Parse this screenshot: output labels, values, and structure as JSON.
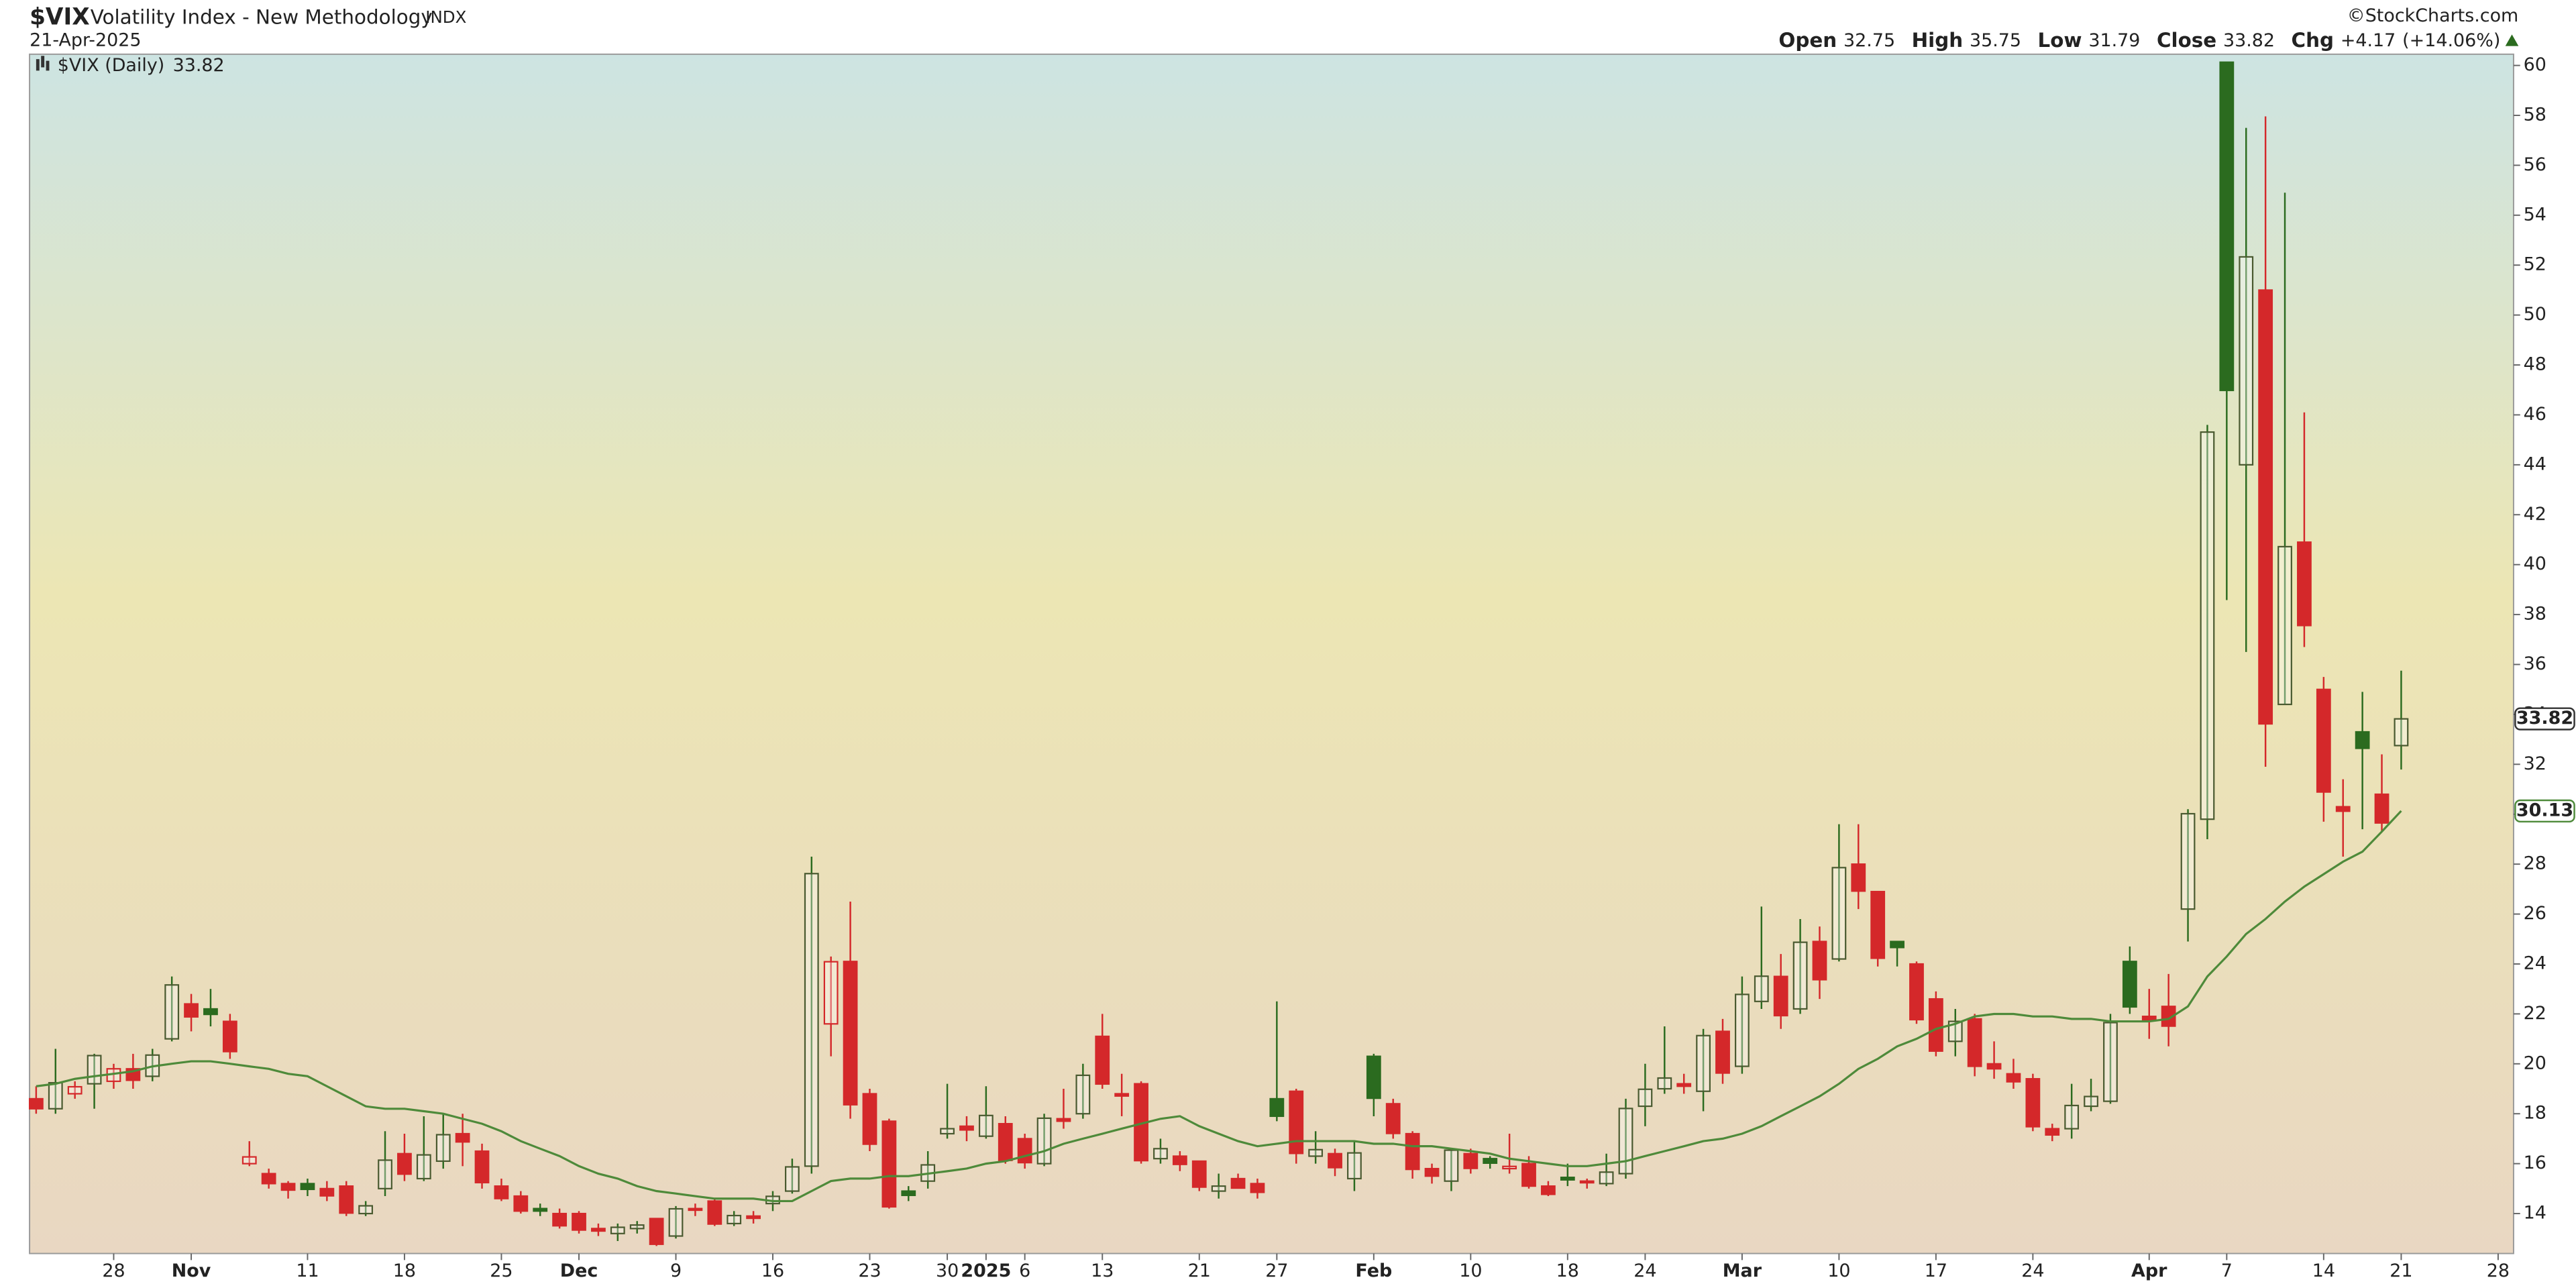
{
  "chart_data": {
    "type": "candlestick",
    "title": "$VIX",
    "subtitle": "Volatility Index - New Methodology",
    "exchange": "INDX",
    "date": "21-Apr-2025",
    "source": "©StockCharts.com",
    "legend_label": "$VIX (Daily)",
    "ohlc_labels": [
      "Open",
      "High",
      "Low",
      "Close",
      "Chg"
    ],
    "change": {
      "value": 4.17,
      "label": "+4.17"
    },
    "change_pct": {
      "value": 14.06,
      "label": "(+14.06%)"
    },
    "up_color": "#2b6b1f",
    "down_color": "#d4282a",
    "ylim": [
      12.4,
      60.45
    ],
    "yticks": [
      14,
      16,
      18,
      20,
      22,
      24,
      26,
      28,
      30,
      32,
      34,
      36,
      38,
      40,
      42,
      44,
      46,
      48,
      50,
      52,
      54,
      56,
      58,
      60
    ],
    "categories": [
      null,
      null,
      null,
      null,
      "28",
      null,
      null,
      null,
      "Nov",
      null,
      null,
      null,
      null,
      null,
      "11",
      null,
      null,
      null,
      null,
      "18",
      null,
      null,
      null,
      null,
      "25",
      null,
      null,
      null,
      "Dec",
      null,
      null,
      null,
      null,
      "9",
      null,
      null,
      null,
      null,
      "16",
      null,
      null,
      null,
      null,
      "23",
      null,
      null,
      null,
      "30",
      null,
      "2025",
      null,
      "6",
      null,
      null,
      null,
      "13",
      null,
      null,
      null,
      null,
      "21",
      null,
      null,
      null,
      "27",
      null,
      null,
      null,
      null,
      "Feb",
      null,
      null,
      null,
      null,
      "10",
      null,
      null,
      null,
      null,
      "18",
      null,
      null,
      null,
      "24",
      null,
      null,
      null,
      null,
      "Mar",
      null,
      null,
      null,
      null,
      "10",
      null,
      null,
      null,
      null,
      "17",
      null,
      null,
      null,
      null,
      "24",
      null,
      null,
      null,
      null,
      null,
      "Apr",
      null,
      null,
      null,
      "7",
      null,
      null,
      null,
      null,
      "14",
      null,
      null,
      null,
      "21",
      null,
      null,
      null,
      null,
      "28"
    ],
    "open": [
      18.6,
      18.2,
      18.8,
      19.2,
      19.3,
      19.8,
      19.5,
      21.0,
      22.4,
      22.2,
      21.7,
      16.0,
      15.6,
      15.2,
      15.2,
      15.0,
      15.1,
      14.0,
      15.0,
      16.4,
      15.4,
      16.1,
      17.2,
      16.5,
      15.1,
      14.7,
      14.2,
      14.0,
      14.0,
      13.4,
      13.2,
      13.4,
      13.8,
      13.1,
      14.2,
      14.5,
      13.6,
      13.9,
      14.4,
      14.9,
      15.9,
      21.6,
      24.1,
      18.8,
      17.7,
      14.9,
      15.3,
      17.2,
      17.5,
      17.1,
      17.6,
      17.0,
      16.0,
      17.8,
      18.0,
      21.1,
      18.8,
      19.2,
      16.2,
      16.3,
      16.1,
      14.9,
      15.4,
      15.2,
      18.6,
      18.9,
      16.3,
      16.4,
      15.4,
      20.3,
      18.4,
      17.2,
      15.8,
      15.3,
      16.4,
      16.2,
      15.8,
      16.0,
      15.1,
      15.45,
      15.3,
      15.2,
      15.6,
      18.3,
      19.0,
      19.2,
      18.9,
      21.3,
      19.9,
      22.5,
      23.5,
      22.2,
      24.9,
      24.2,
      28.0,
      26.9,
      24.9,
      24.0,
      22.6,
      20.9,
      21.8,
      20.0,
      19.6,
      19.4,
      17.4,
      17.4,
      18.3,
      18.5,
      24.1,
      21.9,
      22.3,
      26.2,
      29.8,
      60.13,
      44.0,
      51.0,
      34.4,
      40.9,
      35.0,
      30.3,
      33.3,
      30.8,
      32.75,
      null,
      null,
      null,
      null,
      null
    ],
    "high": [
      19.1,
      20.6,
      19.3,
      20.4,
      20.0,
      20.4,
      20.6,
      23.5,
      22.8,
      23.0,
      22.0,
      16.9,
      15.8,
      15.3,
      15.4,
      15.3,
      15.3,
      14.5,
      17.3,
      17.2,
      17.9,
      18.0,
      18.0,
      16.8,
      15.4,
      14.9,
      14.4,
      14.2,
      14.1,
      13.6,
      13.6,
      13.7,
      13.8,
      14.3,
      14.4,
      14.6,
      14.1,
      14.1,
      14.9,
      16.2,
      28.3,
      24.3,
      26.5,
      19.0,
      17.8,
      15.1,
      16.5,
      19.2,
      17.9,
      19.1,
      17.9,
      17.2,
      18.0,
      19.0,
      20.0,
      22.0,
      19.6,
      19.3,
      17.0,
      16.5,
      16.1,
      15.6,
      15.6,
      15.4,
      22.5,
      19.0,
      17.3,
      16.6,
      16.9,
      20.4,
      18.6,
      17.3,
      16.0,
      16.6,
      16.6,
      16.3,
      17.2,
      16.3,
      15.3,
      16.0,
      15.4,
      16.4,
      18.6,
      20.0,
      21.5,
      19.6,
      21.4,
      21.8,
      23.5,
      26.3,
      24.4,
      25.8,
      25.5,
      29.6,
      29.6,
      26.9,
      24.9,
      24.1,
      22.9,
      22.2,
      22.0,
      20.9,
      20.2,
      19.6,
      17.6,
      19.2,
      19.4,
      22.0,
      24.7,
      23.0,
      23.6,
      30.2,
      45.6,
      60.13,
      57.5,
      57.96,
      54.9,
      46.1,
      35.5,
      31.4,
      34.9,
      32.4,
      35.75,
      null,
      null,
      null,
      null,
      null
    ],
    "low": [
      18.0,
      18.0,
      18.6,
      18.2,
      19.0,
      19.0,
      19.3,
      20.9,
      21.3,
      21.5,
      20.2,
      15.9,
      15.0,
      14.6,
      14.7,
      14.5,
      13.9,
      13.9,
      14.7,
      15.3,
      15.3,
      15.8,
      15.9,
      15.0,
      14.5,
      14.0,
      13.9,
      13.4,
      13.2,
      13.1,
      12.9,
      13.2,
      12.7,
      13.0,
      13.9,
      13.5,
      13.5,
      13.6,
      14.1,
      14.8,
      15.6,
      20.3,
      17.8,
      16.5,
      14.2,
      14.5,
      15.0,
      17.0,
      16.9,
      17.0,
      16.0,
      15.8,
      15.9,
      17.4,
      17.8,
      19.0,
      17.9,
      16.0,
      16.0,
      15.7,
      14.9,
      14.6,
      15.0,
      14.6,
      17.7,
      16.0,
      16.0,
      15.5,
      14.9,
      17.9,
      17.0,
      15.4,
      15.2,
      14.9,
      15.6,
      15.8,
      15.6,
      15.0,
      14.7,
      15.1,
      15.0,
      15.1,
      15.4,
      17.5,
      18.8,
      18.8,
      18.1,
      19.2,
      19.6,
      22.2,
      21.4,
      22.0,
      22.6,
      24.1,
      26.2,
      23.9,
      23.9,
      21.6,
      20.3,
      20.3,
      19.5,
      19.4,
      19.0,
      17.3,
      16.9,
      17.0,
      18.1,
      18.4,
      22.0,
      21.0,
      20.7,
      24.9,
      29.0,
      38.58,
      36.5,
      31.9,
      34.4,
      36.7,
      29.7,
      28.3,
      29.4,
      29.3,
      31.79,
      null,
      null,
      null,
      null,
      null
    ],
    "close": [
      18.2,
      19.24,
      19.08,
      20.33,
      19.8,
      19.34,
      20.35,
      23.16,
      21.88,
      21.98,
      20.49,
      16.27,
      15.2,
      14.94,
      14.97,
      14.71,
      14.02,
      14.31,
      16.14,
      15.58,
      16.35,
      17.16,
      16.87,
      15.24,
      14.6,
      14.1,
      14.1,
      13.51,
      13.34,
      13.3,
      13.45,
      13.54,
      12.77,
      14.19,
      14.18,
      13.58,
      13.92,
      13.81,
      14.69,
      15.87,
      27.62,
      24.09,
      18.36,
      16.78,
      14.27,
      14.73,
      15.95,
      17.4,
      17.35,
      17.93,
      16.13,
      16.04,
      17.82,
      17.7,
      19.54,
      19.19,
      18.71,
      16.12,
      16.6,
      15.97,
      15.06,
      15.1,
      15.02,
      14.85,
      17.9,
      16.41,
      16.56,
      15.84,
      16.43,
      18.62,
      17.21,
      15.77,
      15.5,
      16.54,
      15.81,
      16.02,
      15.89,
      15.1,
      14.77,
      15.35,
      15.27,
      15.66,
      18.21,
      18.98,
      19.43,
      19.1,
      21.13,
      19.63,
      22.78,
      23.51,
      21.93,
      24.87,
      23.37,
      27.86,
      26.92,
      24.23,
      24.66,
      21.77,
      20.51,
      21.7,
      19.9,
      19.8,
      19.28,
      17.48,
      17.15,
      18.33,
      18.69,
      21.65,
      22.28,
      21.77,
      21.51,
      30.02,
      45.31,
      46.98,
      52.33,
      33.62,
      40.72,
      37.56,
      30.89,
      30.12,
      32.64,
      29.65,
      33.82,
      null,
      null,
      null,
      null,
      null
    ],
    "ma": {
      "color": "#4e8a3a",
      "values": [
        19.1,
        19.2,
        19.4,
        19.5,
        19.6,
        19.7,
        19.9,
        20.0,
        20.1,
        20.1,
        20.0,
        19.9,
        19.8,
        19.6,
        19.5,
        19.1,
        18.7,
        18.3,
        18.2,
        18.2,
        18.1,
        18.0,
        17.8,
        17.6,
        17.3,
        16.9,
        16.6,
        16.3,
        15.9,
        15.6,
        15.4,
        15.1,
        14.9,
        14.8,
        14.7,
        14.6,
        14.6,
        14.6,
        14.5,
        14.5,
        14.9,
        15.3,
        15.4,
        15.4,
        15.5,
        15.5,
        15.6,
        15.7,
        15.8,
        16.0,
        16.1,
        16.3,
        16.5,
        16.8,
        17.0,
        17.2,
        17.4,
        17.6,
        17.8,
        17.9,
        17.5,
        17.2,
        16.9,
        16.7,
        16.8,
        16.9,
        16.9,
        16.9,
        16.9,
        16.8,
        16.8,
        16.7,
        16.7,
        16.6,
        16.5,
        16.4,
        16.2,
        16.1,
        16.0,
        15.9,
        15.9,
        16.0,
        16.1,
        16.3,
        16.5,
        16.7,
        16.9,
        17.0,
        17.2,
        17.5,
        17.9,
        18.3,
        18.7,
        19.2,
        19.8,
        20.2,
        20.7,
        21.0,
        21.4,
        21.6,
        21.9,
        22.0,
        22.0,
        21.9,
        21.9,
        21.8,
        21.8,
        21.7,
        21.7,
        21.7,
        21.8,
        22.3,
        23.5,
        24.3,
        25.2,
        25.8,
        26.5,
        27.1,
        27.6,
        28.1,
        28.5,
        29.3,
        30.13,
        null,
        null,
        null,
        null,
        null
      ]
    }
  }
}
